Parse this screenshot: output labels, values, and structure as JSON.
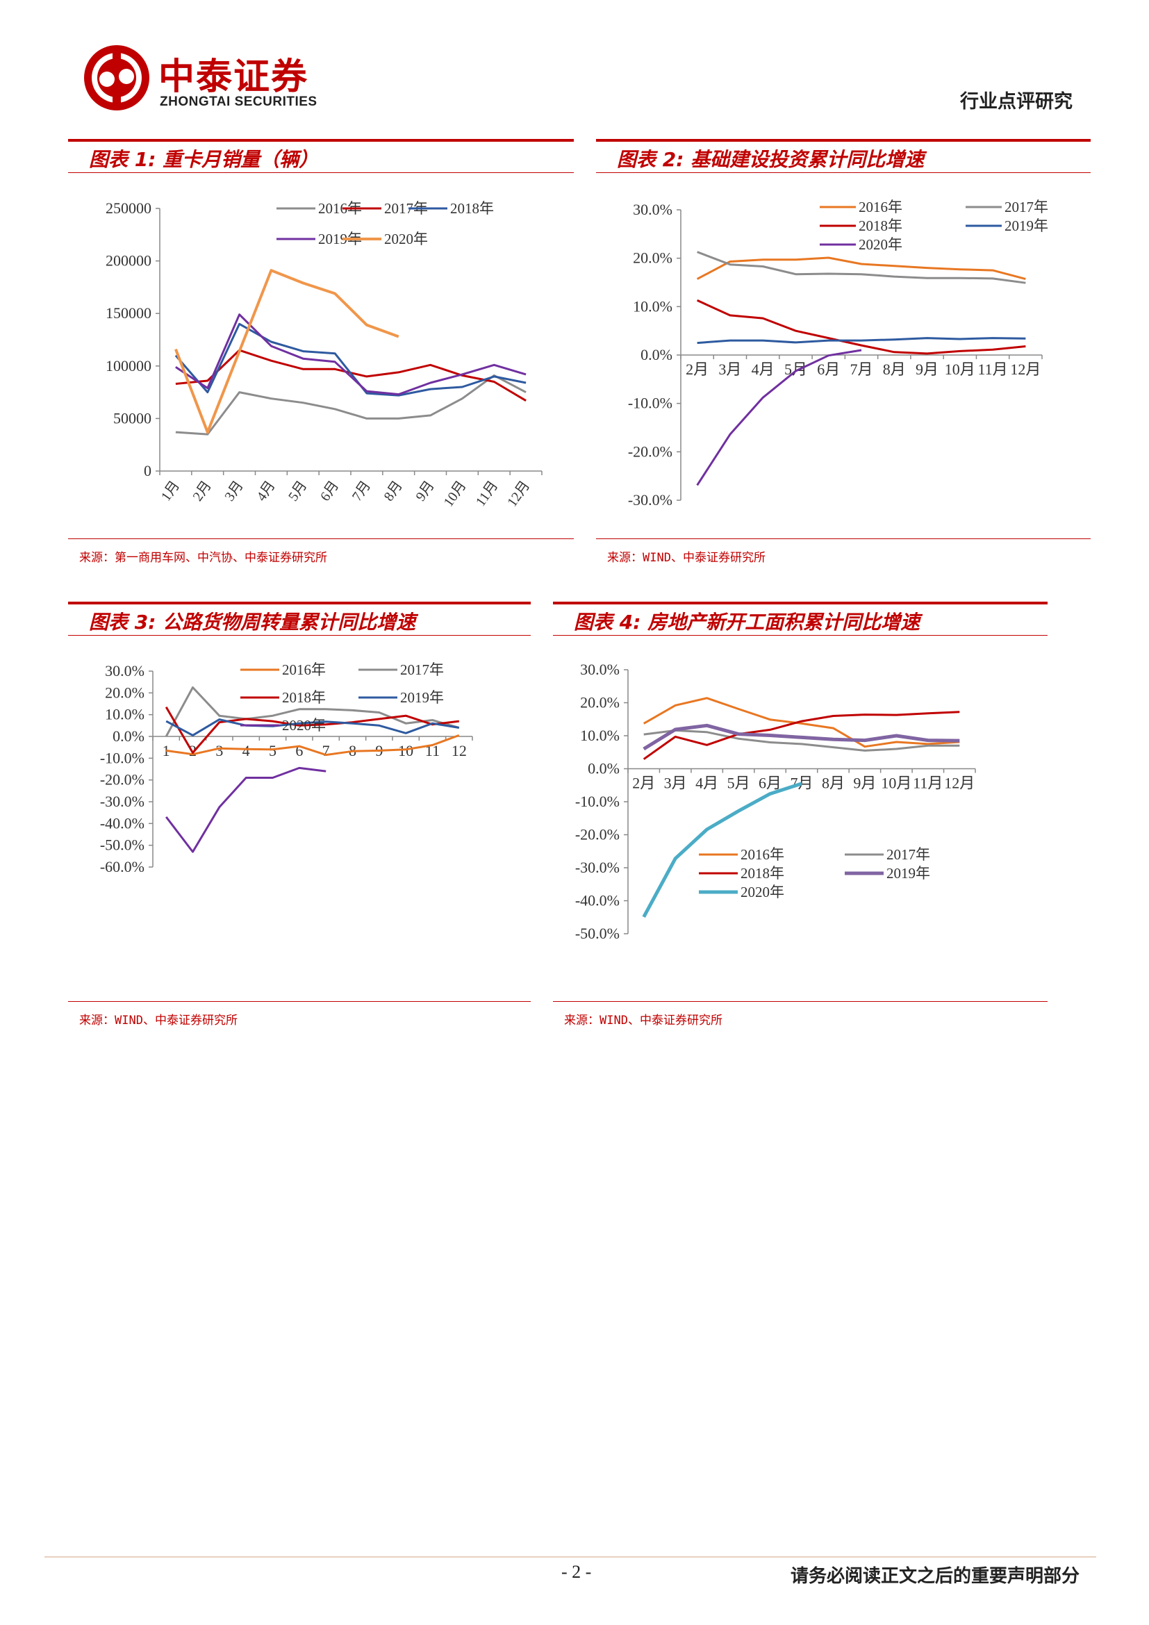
{
  "header": {
    "logo_name": "中泰证券",
    "logo_sub": "ZHONGTAI SECURITIES",
    "report_type": "行业点评研究",
    "brand_color": "#c00000"
  },
  "footer": {
    "page_number": "- 2 -",
    "disclaimer": "请务必阅读正文之后的重要声明部分"
  },
  "panels": [
    {
      "title": "图表 1:  重卡月销量（辆）",
      "source": "来源：第一商用车网、中汽协、中泰证券研究所"
    },
    {
      "title": "图表 2:  基础建设投资累计同比增速",
      "source": "来源：WIND、中泰证券研究所"
    },
    {
      "title": "图表 3:  公路货物周转量累计同比增速",
      "source": "来源：WIND、中泰证券研究所"
    },
    {
      "title": "图表 4:  房地产新开工面积累计同比增速",
      "source": "来源：WIND、中泰证券研究所"
    }
  ],
  "chart_data": [
    {
      "type": "line",
      "title": "图表 1:  重卡月销量（辆）",
      "categories": [
        "1月",
        "2月",
        "3月",
        "4月",
        "5月",
        "6月",
        "7月",
        "8月",
        "9月",
        "10月",
        "11月",
        "12月"
      ],
      "ylim": [
        0,
        250000
      ],
      "yticks": [
        0,
        50000,
        100000,
        150000,
        200000,
        250000
      ],
      "ytick_labels": [
        "0",
        "50000",
        "100000",
        "150000",
        "200000",
        "250000"
      ],
      "legend_position": "top-right",
      "series": [
        {
          "name": "2016年",
          "color": "#8c8c8c",
          "values": [
            37000,
            35000,
            75000,
            69000,
            65000,
            59000,
            50000,
            50000,
            53000,
            69000,
            91000,
            75000
          ]
        },
        {
          "name": "2017年",
          "color": "#c00000",
          "values": [
            83000,
            86000,
            115000,
            105000,
            97000,
            97000,
            90000,
            94000,
            101000,
            91000,
            85000,
            67000
          ]
        },
        {
          "name": "2018年",
          "color": "#2e5aa0",
          "values": [
            110000,
            75000,
            140000,
            123000,
            114000,
            112000,
            74000,
            72000,
            78000,
            80000,
            90000,
            84000
          ]
        },
        {
          "name": "2019年",
          "color": "#7030a0",
          "values": [
            99000,
            79000,
            149000,
            119000,
            107000,
            104000,
            76000,
            73000,
            84000,
            92000,
            101000,
            92000
          ]
        },
        {
          "name": "2020年",
          "color": "#f0964a",
          "values": [
            116000,
            37000,
            114000,
            191000,
            179000,
            169000,
            139000,
            128000,
            null,
            null,
            null,
            null
          ]
        }
      ]
    },
    {
      "type": "line",
      "title": "图表 2:  基础建设投资累计同比增速",
      "categories": [
        "2月",
        "3月",
        "4月",
        "5月",
        "6月",
        "7月",
        "8月",
        "9月",
        "10月",
        "11月",
        "12月"
      ],
      "ylim": [
        -30,
        30
      ],
      "yticks": [
        -30,
        -20,
        -10,
        0,
        10,
        20,
        30
      ],
      "ytick_labels": [
        "-30.0%",
        "-20.0%",
        "-10.0%",
        "0.0%",
        "10.0%",
        "20.0%",
        "30.0%"
      ],
      "legend_position": "top-right",
      "series": [
        {
          "name": "2016年",
          "color": "#e87722",
          "values": [
            15.7,
            19.3,
            19.7,
            19.7,
            20.1,
            18.8,
            18.4,
            18.0,
            17.7,
            17.5,
            15.7
          ]
        },
        {
          "name": "2017年",
          "color": "#8c8c8c",
          "values": [
            21.3,
            18.7,
            18.3,
            16.7,
            16.8,
            16.7,
            16.2,
            15.9,
            15.9,
            15.8,
            14.9
          ]
        },
        {
          "name": "2018年",
          "color": "#c00000",
          "values": [
            11.3,
            8.2,
            7.6,
            5.0,
            3.5,
            2.0,
            0.6,
            0.3,
            0.8,
            1.1,
            1.8
          ]
        },
        {
          "name": "2019年",
          "color": "#2e5aa0",
          "values": [
            2.5,
            3.0,
            3.0,
            2.6,
            3.0,
            3.0,
            3.2,
            3.5,
            3.3,
            3.5,
            3.4
          ]
        },
        {
          "name": "2020年",
          "color": "#7030a0",
          "values": [
            -26.9,
            -16.4,
            -8.8,
            -3.3,
            -0.1,
            1.0,
            null,
            null,
            null,
            null,
            null
          ]
        }
      ]
    },
    {
      "type": "line",
      "title": "图表 3:  公路货物周转量累计同比增速",
      "categories": [
        "1",
        "2",
        "3",
        "4",
        "5",
        "6",
        "7",
        "8",
        "9",
        "10",
        "11",
        "12"
      ],
      "ylim": [
        -60,
        30
      ],
      "yticks": [
        -60,
        -50,
        -40,
        -30,
        -20,
        -10,
        0,
        10,
        20,
        30
      ],
      "ytick_labels": [
        "-60.0%",
        "-50.0%",
        "-40.0%",
        "-30.0%",
        "-20.0%",
        "-10.0%",
        "0.0%",
        "10.0%",
        "20.0%",
        "30.0%"
      ],
      "legend_position": "top-right",
      "series": [
        {
          "name": "2016年",
          "color": "#e87722",
          "values": [
            -6.5,
            -8.2,
            -5.5,
            -5.8,
            -6.0,
            -4.5,
            -8.5,
            -6.8,
            -6.5,
            -6.0,
            -4.0,
            0.5
          ]
        },
        {
          "name": "2017年",
          "color": "#8c8c8c",
          "values": [
            0.0,
            22.5,
            9.5,
            8.0,
            9.5,
            12.5,
            12.5,
            12.0,
            11.0,
            6.0,
            7.5,
            4.0
          ]
        },
        {
          "name": "2018年",
          "color": "#c00000",
          "values": [
            13.5,
            -7.5,
            6.5,
            8.0,
            7.0,
            5.0,
            5.5,
            6.5,
            8.0,
            9.5,
            5.5,
            7.0
          ]
        },
        {
          "name": "2019年",
          "color": "#2e5aa0",
          "values": [
            7.0,
            0.5,
            7.8,
            5.0,
            4.7,
            6.0,
            6.8,
            6.0,
            5.0,
            1.5,
            6.0,
            4.0
          ]
        },
        {
          "name": "2020年",
          "color": "#7030a0",
          "values": [
            -37.0,
            -53.0,
            -32.5,
            -19.0,
            -19.0,
            -14.5,
            -16.0,
            null,
            null,
            null,
            null,
            null
          ]
        }
      ]
    },
    {
      "type": "line",
      "title": "图表 4:  房地产新开工面积累计同比增速",
      "categories": [
        "2月",
        "3月",
        "4月",
        "5月",
        "6月",
        "7月",
        "8月",
        "9月",
        "10月",
        "11月",
        "12月"
      ],
      "ylim": [
        -50,
        30
      ],
      "yticks": [
        -50,
        -40,
        -30,
        -20,
        -10,
        0,
        10,
        20,
        30
      ],
      "ytick_labels": [
        "-50.0%",
        "-40.0%",
        "-30.0%",
        "-20.0%",
        "-10.0%",
        "0.0%",
        "10.0%",
        "20.0%",
        "30.0%"
      ],
      "legend_position": "center-right",
      "series": [
        {
          "name": "2016年",
          "color": "#e87722",
          "values": [
            13.7,
            19.2,
            21.4,
            18.1,
            14.9,
            13.7,
            12.3,
            6.7,
            8.1,
            7.5,
            8.1
          ]
        },
        {
          "name": "2017年",
          "color": "#8c8c8c",
          "values": [
            10.4,
            11.6,
            11.1,
            9.1,
            8.0,
            7.5,
            6.5,
            5.5,
            6.0,
            7.0,
            7.0
          ]
        },
        {
          "name": "2018年",
          "color": "#c00000",
          "values": [
            2.9,
            9.7,
            7.2,
            10.5,
            11.8,
            14.4,
            16.0,
            16.4,
            16.3,
            16.8,
            17.2
          ]
        },
        {
          "name": "2019年",
          "color": "#8064a2",
          "values": [
            6.0,
            11.9,
            13.1,
            10.5,
            10.1,
            9.5,
            8.9,
            8.6,
            10.0,
            8.6,
            8.5
          ]
        },
        {
          "name": "2020年",
          "color": "#4bacc6",
          "values": [
            -44.9,
            -27.2,
            -18.4,
            -12.8,
            -7.6,
            -4.5,
            null,
            null,
            null,
            null,
            null
          ]
        }
      ]
    }
  ]
}
